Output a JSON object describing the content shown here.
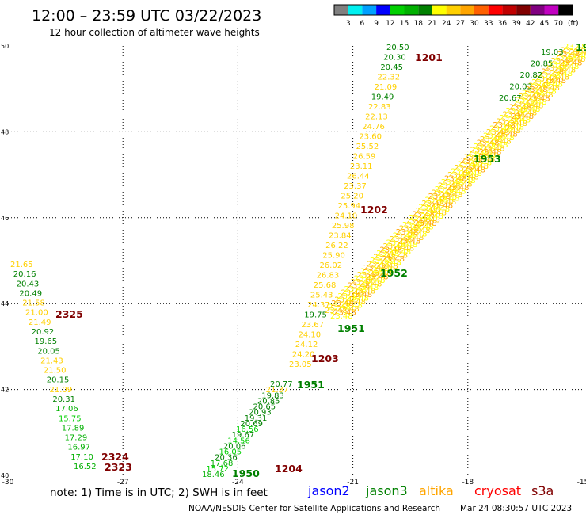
{
  "header": {
    "title": "12:00 – 23:59 UTC 03/22/2023",
    "subtitle": "12 hour collection of altimeter wave heights"
  },
  "colorbar": {
    "unit": "(ft)",
    "ticks": [
      "3",
      "6",
      "9",
      "12",
      "15",
      "18",
      "21",
      "24",
      "27",
      "30",
      "33",
      "36",
      "39",
      "42",
      "45",
      "70"
    ],
    "colors": [
      "#808080",
      "#00f0f0",
      "#00a0ff",
      "#0000ff",
      "#00d000",
      "#00b000",
      "#008000",
      "#ffff00",
      "#ffd000",
      "#ffa500",
      "#ff6000",
      "#ff0000",
      "#c00000",
      "#800000",
      "#800080",
      "#c000c0",
      "#000000"
    ]
  },
  "map": {
    "lon_range": [
      -30,
      -15
    ],
    "lat_range": [
      40,
      50
    ],
    "x_ticks": [
      "-30",
      "-27",
      "-24",
      "-21",
      "-18",
      "-15"
    ],
    "y_ticks": [
      "40",
      "42",
      "44",
      "46",
      "48",
      "50"
    ]
  },
  "tracks": [
    {
      "name": "left-track",
      "values": [
        "21.65",
        "20.16",
        "20.43",
        "20.49",
        "21.58",
        "21.00",
        "21.49",
        "20.92",
        "19.65",
        "20.05",
        "21.43",
        "21.50",
        "20.15",
        "21.09",
        "20.31",
        "17.06",
        "15.75",
        "17.89",
        "17.29",
        "16.97",
        "17.10",
        "16.52"
      ],
      "colors": [
        "#ffd000",
        "#008000",
        "#008000",
        "#008000",
        "#ffd000",
        "#ffd000",
        "#ffd000",
        "#008000",
        "#008000",
        "#008000",
        "#ffd000",
        "#ffd000",
        "#008000",
        "#ffd000",
        "#008000",
        "#00b000",
        "#00d000",
        "#00b000",
        "#00b000",
        "#00b000",
        "#00b000",
        "#00b000"
      ]
    },
    {
      "name": "lower-middle-track",
      "values": [
        "20.77",
        "21.37",
        "19.83",
        "20.85",
        "20.65",
        "20.93",
        "19.31",
        "20.69",
        "16.56",
        "19.67",
        "14.56",
        "20.06",
        "16.05",
        "20.36",
        "17.68",
        "15.72",
        "18.46"
      ],
      "colors": [
        "#008000",
        "#ffd000",
        "#008000",
        "#008000",
        "#008000",
        "#008000",
        "#008000",
        "#008000",
        "#00d000",
        "#008000",
        "#00d000",
        "#008000",
        "#00d000",
        "#008000",
        "#00b000",
        "#00d000",
        "#00b000"
      ]
    },
    {
      "name": "upper-middle-track",
      "values": [
        "20.50",
        "20.30",
        "20.45",
        "22.32",
        "21.09",
        "19.49",
        "22.83",
        "22.13",
        "24.76",
        "23.60",
        "25.52",
        "26.59",
        "23.11",
        "26.44",
        "23.37",
        "25.20",
        "25.94",
        "24.10",
        "25.98",
        "23.84",
        "26.22",
        "25.90",
        "26.02",
        "26.83",
        "25.68",
        "25.43",
        "24.37",
        "19.75",
        "23.67",
        "24.10",
        "24.12",
        "24.20",
        "23.05"
      ],
      "colors": [
        "#008000",
        "#008000",
        "#008000",
        "#ffd000",
        "#ffd000",
        "#008000",
        "#ffd000",
        "#ffd000",
        "#ffd000",
        "#ffd000",
        "#ffd000",
        "#ffd000",
        "#ffd000",
        "#ffd000",
        "#ffd000",
        "#ffd000",
        "#ffd000",
        "#ffd000",
        "#ffd000",
        "#ffd000",
        "#ffd000",
        "#ffd000",
        "#ffd000",
        "#ffd000",
        "#ffd000",
        "#ffd000",
        "#ffd000",
        "#008000",
        "#ffd000",
        "#ffd000",
        "#ffd000",
        "#ffd000",
        "#ffd000"
      ]
    },
    {
      "name": "upper-right-track",
      "values": [
        "19.03",
        "20.85",
        "20.82",
        "20.03",
        "20.67"
      ],
      "colors": [
        "#008000",
        "#008000",
        "#008000",
        "#008000",
        "#008000"
      ]
    }
  ],
  "time_labels": [
    {
      "text": "1201",
      "color": "#800000"
    },
    {
      "text": "1202",
      "color": "#800000"
    },
    {
      "text": "1203",
      "color": "#800000"
    },
    {
      "text": "1204",
      "color": "#800000"
    },
    {
      "text": "2325",
      "color": "#800000"
    },
    {
      "text": "2324",
      "color": "#800000"
    },
    {
      "text": "2323",
      "color": "#800000"
    },
    {
      "text": "1950",
      "color": "#008000"
    },
    {
      "text": "1951",
      "color": "#008000"
    },
    {
      "text": "1951",
      "color": "#008000"
    },
    {
      "text": "1952",
      "color": "#008000"
    },
    {
      "text": "1953",
      "color": "#008000"
    },
    {
      "text": "19",
      "color": "#008000"
    }
  ],
  "legend": {
    "note": "note: 1) Time is in UTC; 2) SWH is in feet",
    "satellites": [
      {
        "name": "jason2",
        "color": "#0000ff"
      },
      {
        "name": "jason3",
        "color": "#008000"
      },
      {
        "name": "altika",
        "color": "#ffa500"
      },
      {
        "name": "cryosat",
        "color": "#ff0000"
      },
      {
        "name": "s3a",
        "color": "#800000"
      }
    ]
  },
  "footer": {
    "credit": "NOAA/NESDIS Center for Satellite Applications and Research",
    "timestamp": "Mar 24 08:30:57 UTC 2023"
  }
}
